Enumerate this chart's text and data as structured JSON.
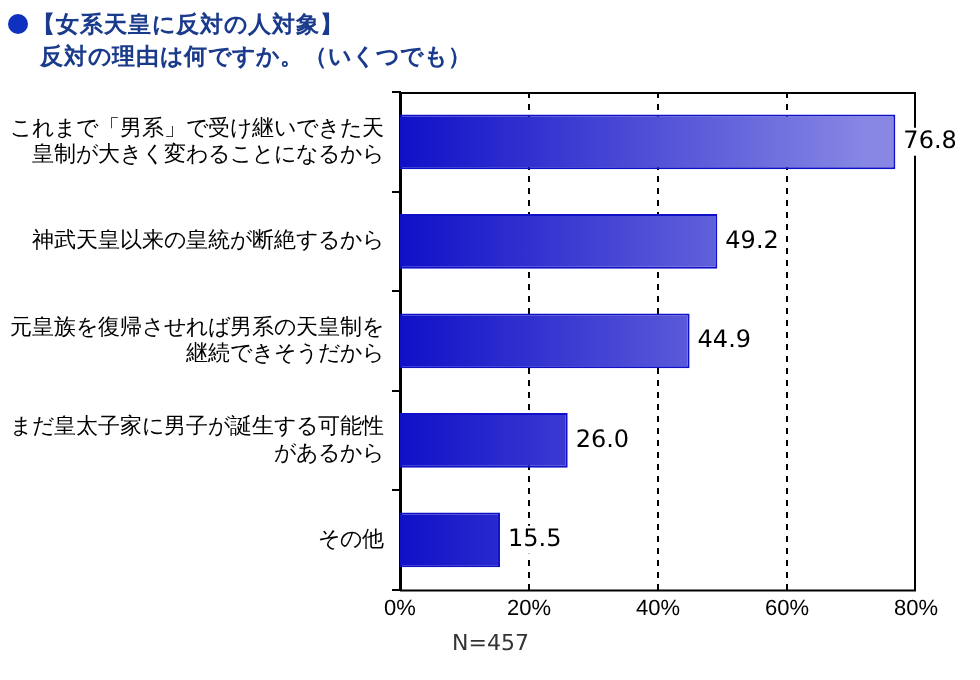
{
  "chart_data": {
    "type": "bar",
    "orientation": "horizontal",
    "title": "【女系天皇に反対の人対象】",
    "subtitle": "反対の理由は何ですか。（いくつでも）",
    "categories": [
      "これまで「男系」で受け継いできた天皇制が大きく変わることになるから",
      "神武天皇以来の皇統が断絶するから",
      "元皇族を復帰させれば男系の天皇制を継続できそうだから",
      "まだ皇太子家に男子が誕生する可能性があるから",
      "その他"
    ],
    "values": [
      76.8,
      49.2,
      44.9,
      26.0,
      15.5
    ],
    "value_labels": [
      "76.8",
      "49.2",
      "44.9",
      "26.0",
      "15.5"
    ],
    "color": "#1010c8",
    "xlim": [
      0,
      80
    ],
    "xticks": [
      {
        "value": 0,
        "label": "0%"
      },
      {
        "value": 20,
        "label": "20%"
      },
      {
        "value": 40,
        "label": "40%"
      },
      {
        "value": 60,
        "label": "60%"
      },
      {
        "value": 80,
        "label": "80%"
      }
    ],
    "grid": "x",
    "annotations": [
      "N=457"
    ]
  }
}
